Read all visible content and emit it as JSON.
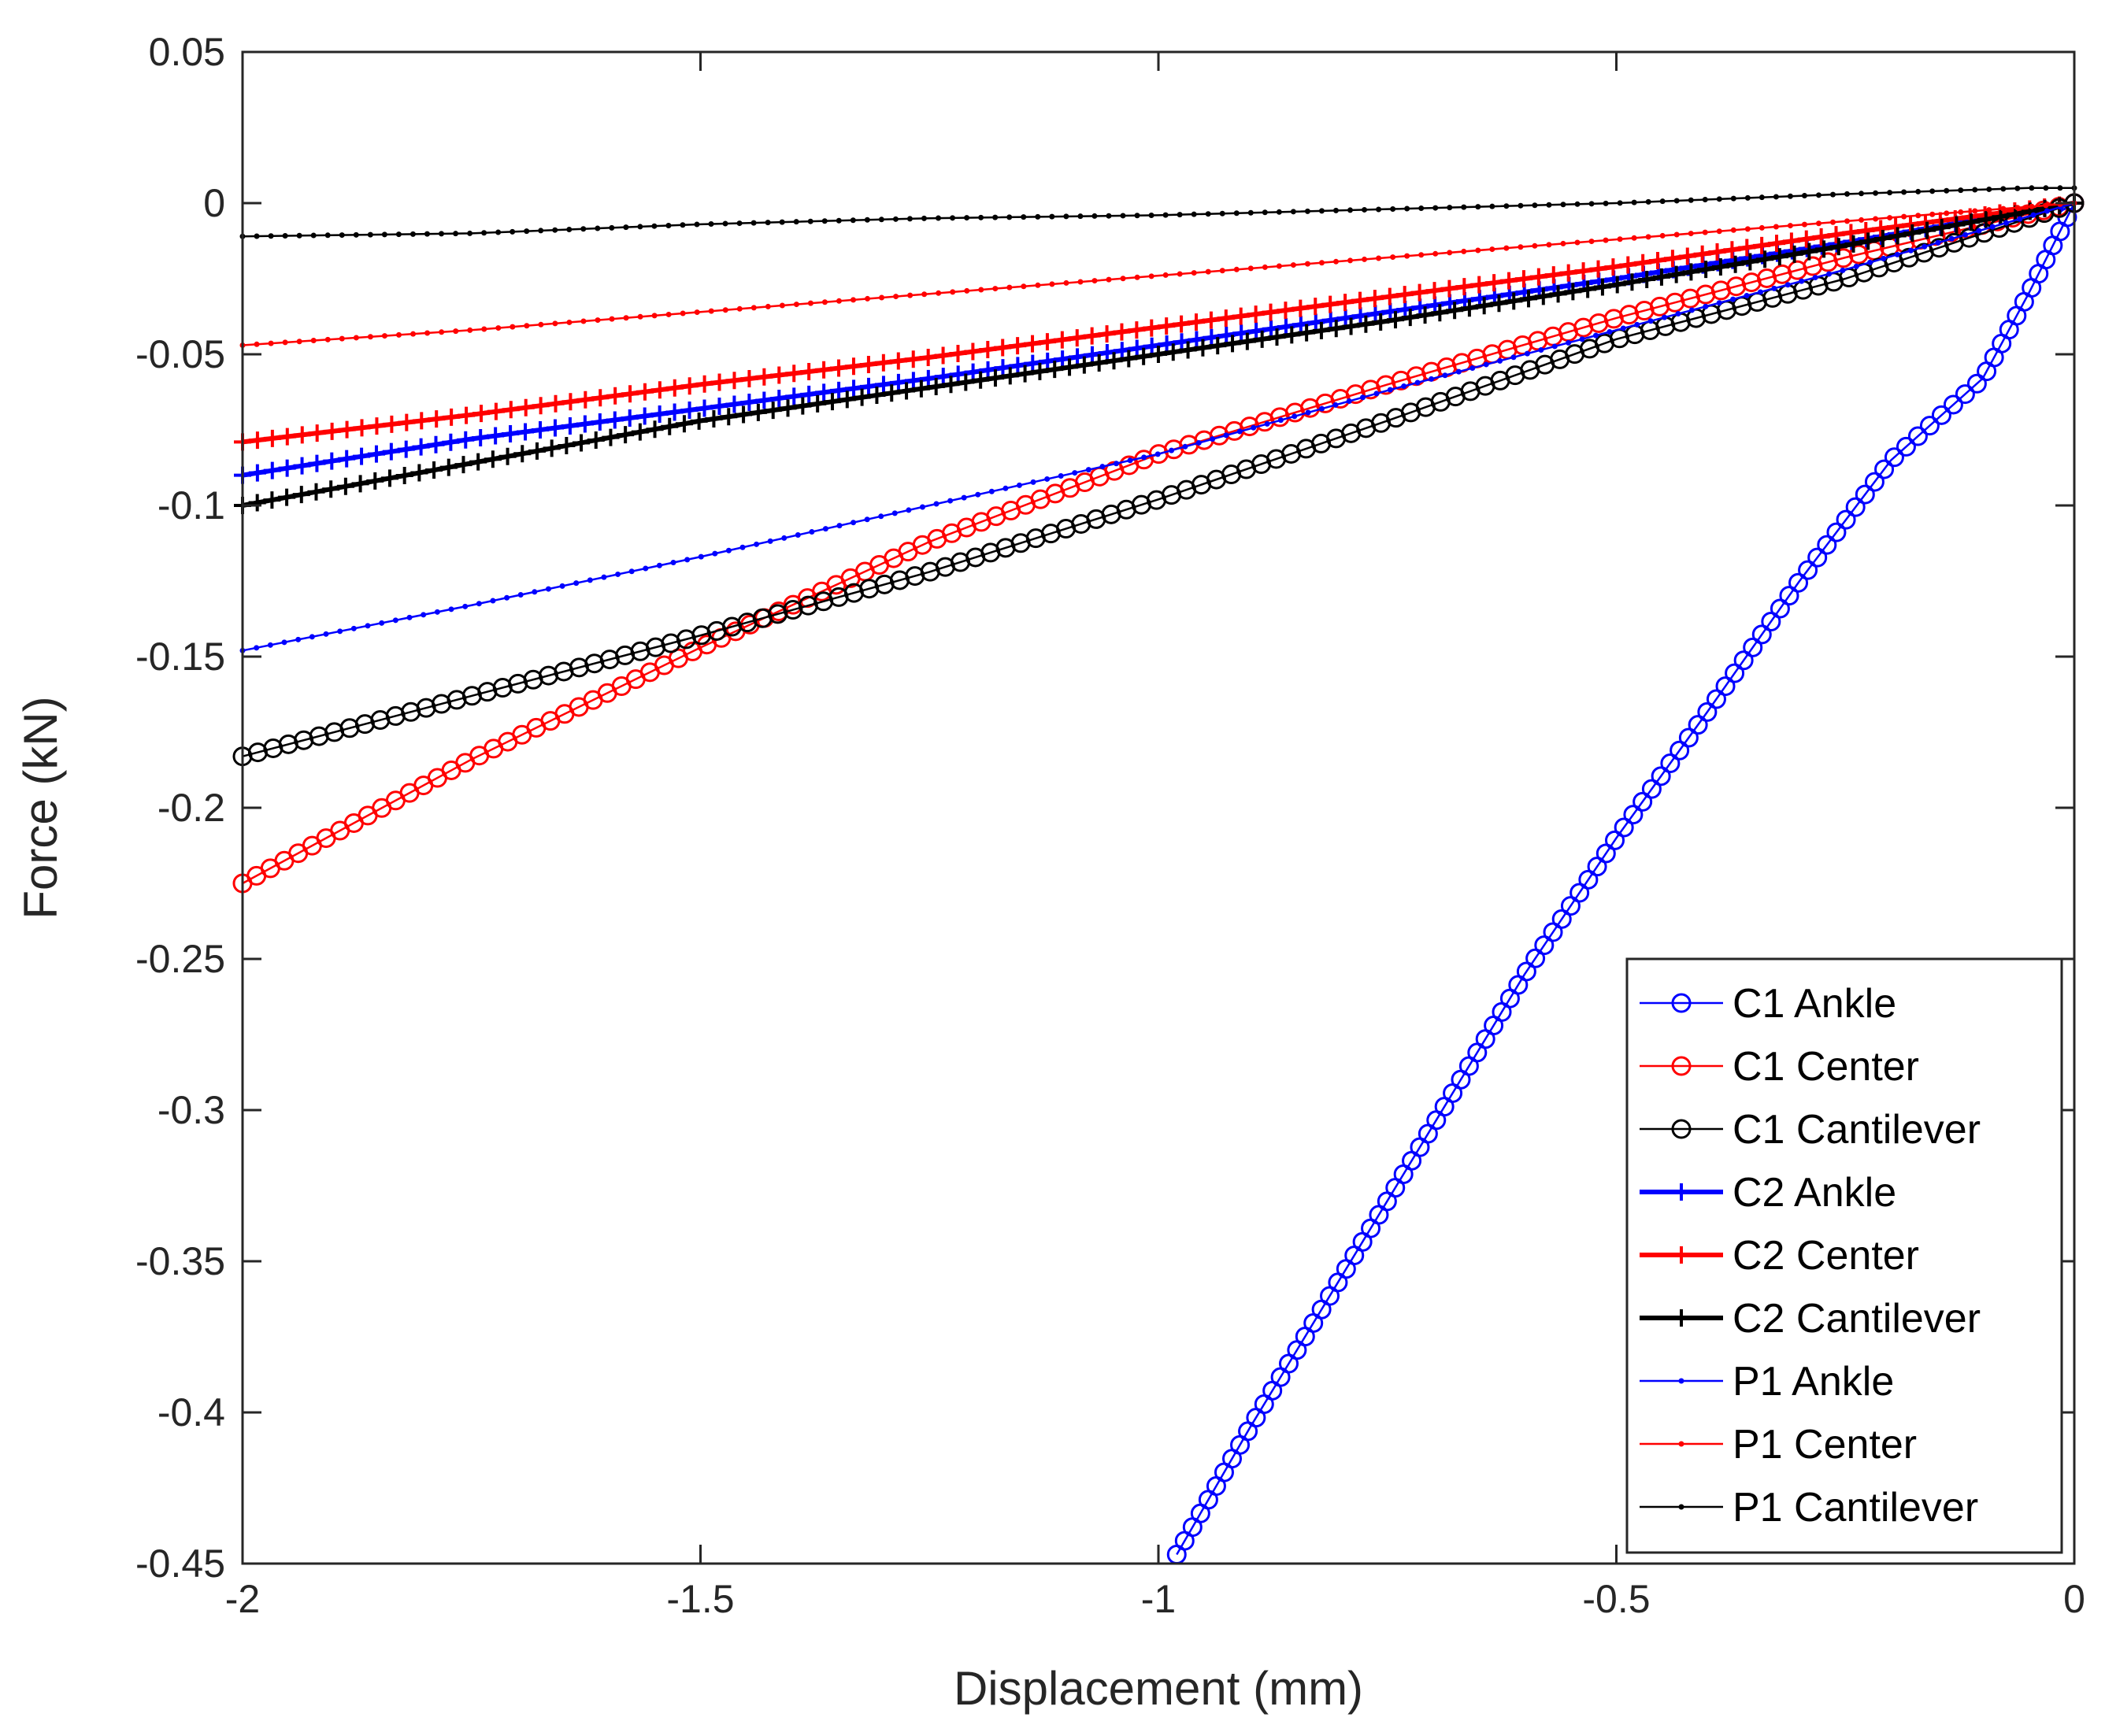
{
  "chart_data": {
    "type": "line",
    "title": "",
    "xlabel": "Displacement (mm)",
    "ylabel": "Force (kN)",
    "xlim": [
      -2,
      0
    ],
    "ylim": [
      -0.45,
      0.05
    ],
    "xticks": [
      -2,
      -1.5,
      -1,
      -0.5,
      0
    ],
    "xtick_labels": [
      "-2",
      "-1.5",
      "-1",
      "-0.5",
      "0"
    ],
    "yticks": [
      0.05,
      0,
      -0.05,
      -0.1,
      -0.15,
      -0.2,
      -0.25,
      -0.3,
      -0.35,
      -0.4,
      -0.45
    ],
    "ytick_labels": [
      "0.05",
      "0",
      "-0.05",
      "-0.1",
      "-0.15",
      "-0.2",
      "-0.25",
      "-0.3",
      "-0.35",
      "-0.4",
      "-0.45"
    ],
    "grid": false,
    "legend_position": "bottom-right",
    "series": [
      {
        "name": "C1 Ankle",
        "color": "#0000ff",
        "marker": "circle",
        "line_weight": "thin",
        "x": [
          0,
          -0.05,
          -0.1,
          -0.2,
          -0.3,
          -0.4,
          -0.5,
          -0.6,
          -0.7,
          -0.8,
          -0.9,
          -0.98
        ],
        "y": [
          0,
          -0.03,
          -0.058,
          -0.085,
          -0.125,
          -0.168,
          -0.21,
          -0.255,
          -0.305,
          -0.355,
          -0.405,
          -0.447
        ]
      },
      {
        "name": "C1 Center",
        "color": "#ff0000",
        "marker": "circle",
        "line_weight": "thin",
        "x": [
          0,
          -0.25,
          -0.5,
          -0.75,
          -1,
          -1.25,
          -1.5,
          -1.75,
          -2
        ],
        "y": [
          0,
          -0.018,
          -0.038,
          -0.06,
          -0.083,
          -0.112,
          -0.147,
          -0.184,
          -0.225
        ]
      },
      {
        "name": "C1 Cantilever",
        "color": "#000000",
        "marker": "circle",
        "line_weight": "thin",
        "x": [
          0,
          -0.15,
          -0.25,
          -0.5,
          -0.75,
          -1,
          -1.25,
          -1.5,
          -1.75,
          -2
        ],
        "y": [
          0,
          -0.015,
          -0.025,
          -0.045,
          -0.072,
          -0.098,
          -0.122,
          -0.143,
          -0.163,
          -0.183
        ]
      },
      {
        "name": "C2 Ankle",
        "color": "#0000ff",
        "marker": "plus",
        "line_weight": "thick",
        "x": [
          0,
          -0.25,
          -0.5,
          -0.75,
          -1,
          -1.25,
          -1.5,
          -1.75,
          -2
        ],
        "y": [
          0,
          -0.013,
          -0.025,
          -0.036,
          -0.047,
          -0.058,
          -0.068,
          -0.078,
          -0.09
        ]
      },
      {
        "name": "C2 Center",
        "color": "#ff0000",
        "marker": "plus",
        "line_weight": "thick",
        "x": [
          0,
          -0.25,
          -0.5,
          -0.75,
          -1,
          -1.25,
          -1.5,
          -1.75,
          -2
        ],
        "y": [
          0,
          -0.01,
          -0.021,
          -0.031,
          -0.041,
          -0.051,
          -0.06,
          -0.07,
          -0.079
        ]
      },
      {
        "name": "C2 Cantilever",
        "color": "#000000",
        "marker": "plus",
        "line_weight": "thick",
        "x": [
          0,
          -0.25,
          -0.5,
          -0.75,
          -1,
          -1.25,
          -1.5,
          -1.75,
          -2
        ],
        "y": [
          0,
          -0.014,
          -0.027,
          -0.039,
          -0.05,
          -0.061,
          -0.072,
          -0.086,
          -0.1
        ]
      },
      {
        "name": "P1 Ankle",
        "color": "#0000ff",
        "marker": "dot",
        "line_weight": "thin",
        "x": [
          0,
          -0.25,
          -0.5,
          -0.75,
          -1,
          -1.25,
          -1.5,
          -1.75,
          -2
        ],
        "y": [
          0,
          -0.022,
          -0.042,
          -0.062,
          -0.083,
          -0.1,
          -0.117,
          -0.133,
          -0.148
        ]
      },
      {
        "name": "P1 Center",
        "color": "#ff0000",
        "marker": "dot",
        "line_weight": "thin",
        "x": [
          0,
          -0.25,
          -0.5,
          -0.75,
          -1,
          -1.25,
          -1.5,
          -1.75,
          -2
        ],
        "y": [
          0,
          -0.006,
          -0.012,
          -0.018,
          -0.024,
          -0.03,
          -0.036,
          -0.042,
          -0.047
        ]
      },
      {
        "name": "P1 Cantilever",
        "color": "#000000",
        "marker": "dot",
        "line_weight": "thin",
        "x": [
          0,
          -0.05,
          -0.25,
          -0.5,
          -0.75,
          -1,
          -1.25,
          -1.5,
          -1.75,
          -2
        ],
        "y": [
          0.005,
          0.005,
          0.003,
          0,
          -0.002,
          -0.004,
          -0.005,
          -0.007,
          -0.01,
          -0.011
        ]
      }
    ]
  }
}
